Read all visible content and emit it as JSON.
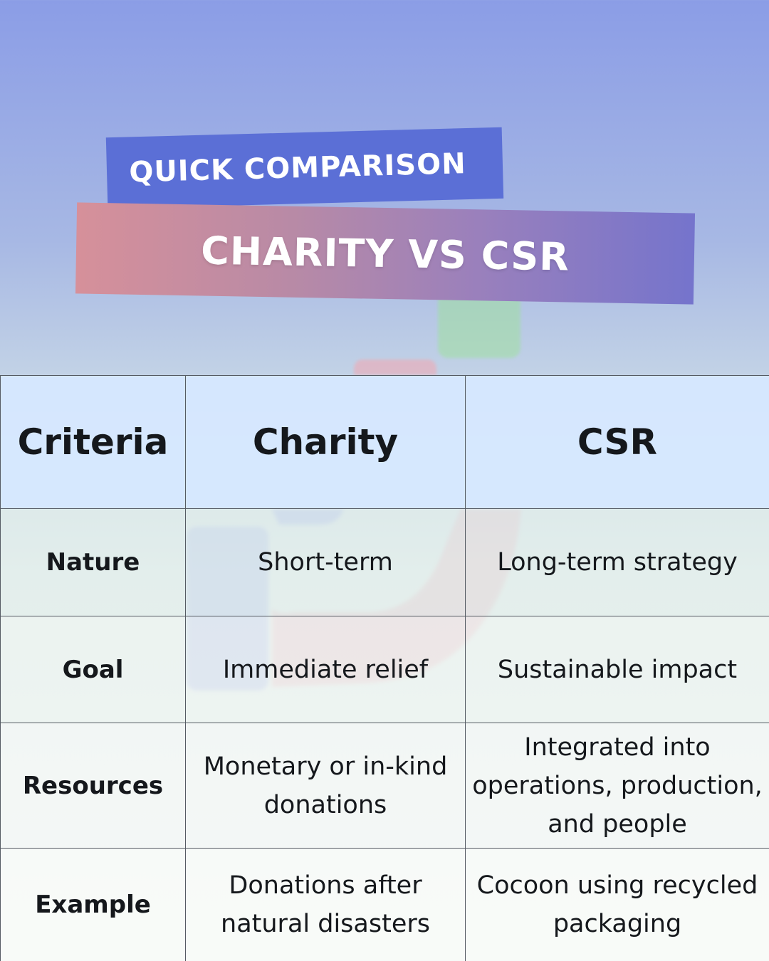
{
  "header": {
    "kicker": "QUICK COMPARISON",
    "title": "CHARITY VS CSR"
  },
  "table": {
    "columns": [
      "Criteria",
      "Charity",
      "CSR"
    ],
    "rows": [
      {
        "criteria": "Nature",
        "charity": "Short-term",
        "csr": "Long-term strategy"
      },
      {
        "criteria": "Goal",
        "charity": "Immediate relief",
        "csr": "Sustainable impact"
      },
      {
        "criteria": "Resources",
        "charity": "Monetary or in-kind donations",
        "csr": "Integrated into operations, production, and people"
      },
      {
        "criteria": "Example",
        "charity": "Donations after natural disasters",
        "csr": "Cocoon using recycled packaging"
      }
    ]
  },
  "colors": {
    "banner_top": "#5b6fd6",
    "banner_gradient_start": "#d6909a",
    "banner_gradient_end": "#7574cc",
    "header_cell": "#d6e8ff"
  }
}
